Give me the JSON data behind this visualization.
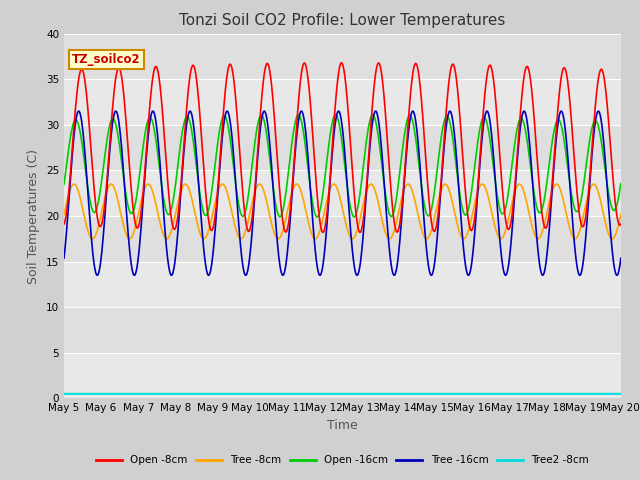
{
  "title": "Tonzi Soil CO2 Profile: Lower Temperatures",
  "xlabel": "Time",
  "ylabel": "Soil Temperatures (C)",
  "ylim": [
    0,
    40
  ],
  "yticks": [
    0,
    5,
    10,
    15,
    20,
    25,
    30,
    35,
    40
  ],
  "xlim": [
    0,
    15
  ],
  "xtick_labels": [
    "May 5",
    "May 6",
    "May 7",
    "May 8",
    "May 9",
    "May 10",
    "May 11",
    "May 12",
    "May 13",
    "May 14",
    "May 15",
    "May 16",
    "May 17",
    "May 18",
    "May 19",
    "May 20"
  ],
  "legend_labels": [
    "Open -8cm",
    "Tree -8cm",
    "Open -16cm",
    "Tree -16cm",
    "Tree2 -8cm"
  ],
  "colors": {
    "open_8cm": "#ff0000",
    "tree_8cm": "#ffa500",
    "open_16cm": "#00cc00",
    "tree_16cm": "#0000bb",
    "tree2_8cm": "#00dddd"
  },
  "annotation_text": "TZ_soilco2",
  "annotation_bg": "#ffffcc",
  "annotation_border": "#cc8800",
  "annotation_text_color": "#cc0000",
  "fig_bg": "#d0d0d0",
  "plot_bg": "#e8e8e8",
  "grid_color": "#ffffff",
  "title_color": "#333333",
  "label_color": "#555555",
  "title_fontsize": 11,
  "axis_label_fontsize": 9,
  "tick_fontsize": 7.5
}
